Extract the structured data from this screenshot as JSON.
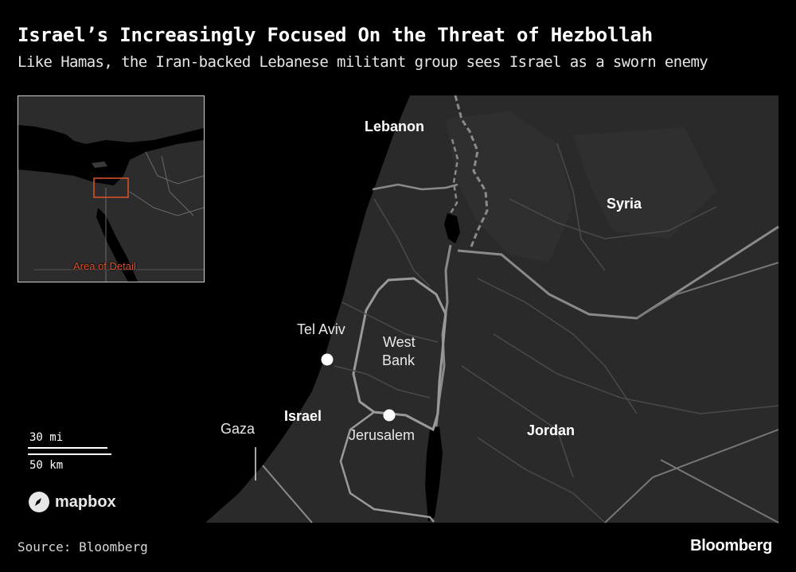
{
  "header": {
    "title": "Israel’s Increasingly Focused On the Threat of Hezbollah",
    "subtitle": "Like Hamas, the Iran-backed Lebanese militant group sees Israel as a sworn enemy"
  },
  "map": {
    "labels": {
      "lebanon": "Lebanon",
      "syria": "Syria",
      "jordan": "Jordan",
      "israel": "Israel",
      "tel_aviv": "Tel Aviv",
      "west_bank_line1": "West",
      "west_bank_line2": "Bank",
      "jerusalem": "Jerusalem",
      "gaza": "Gaza"
    },
    "inset": {
      "label": "Area of Detail"
    },
    "scale": {
      "miles": "30 mi",
      "km": "50 km"
    },
    "attribution": "mapbox",
    "colors": {
      "land": "#2a2a2a",
      "sea": "#000000",
      "borders": "#8a8a8a",
      "inset_highlight": "#e0522a"
    }
  },
  "footer": {
    "source": "Source: Bloomberg",
    "brand": "Bloomberg"
  }
}
